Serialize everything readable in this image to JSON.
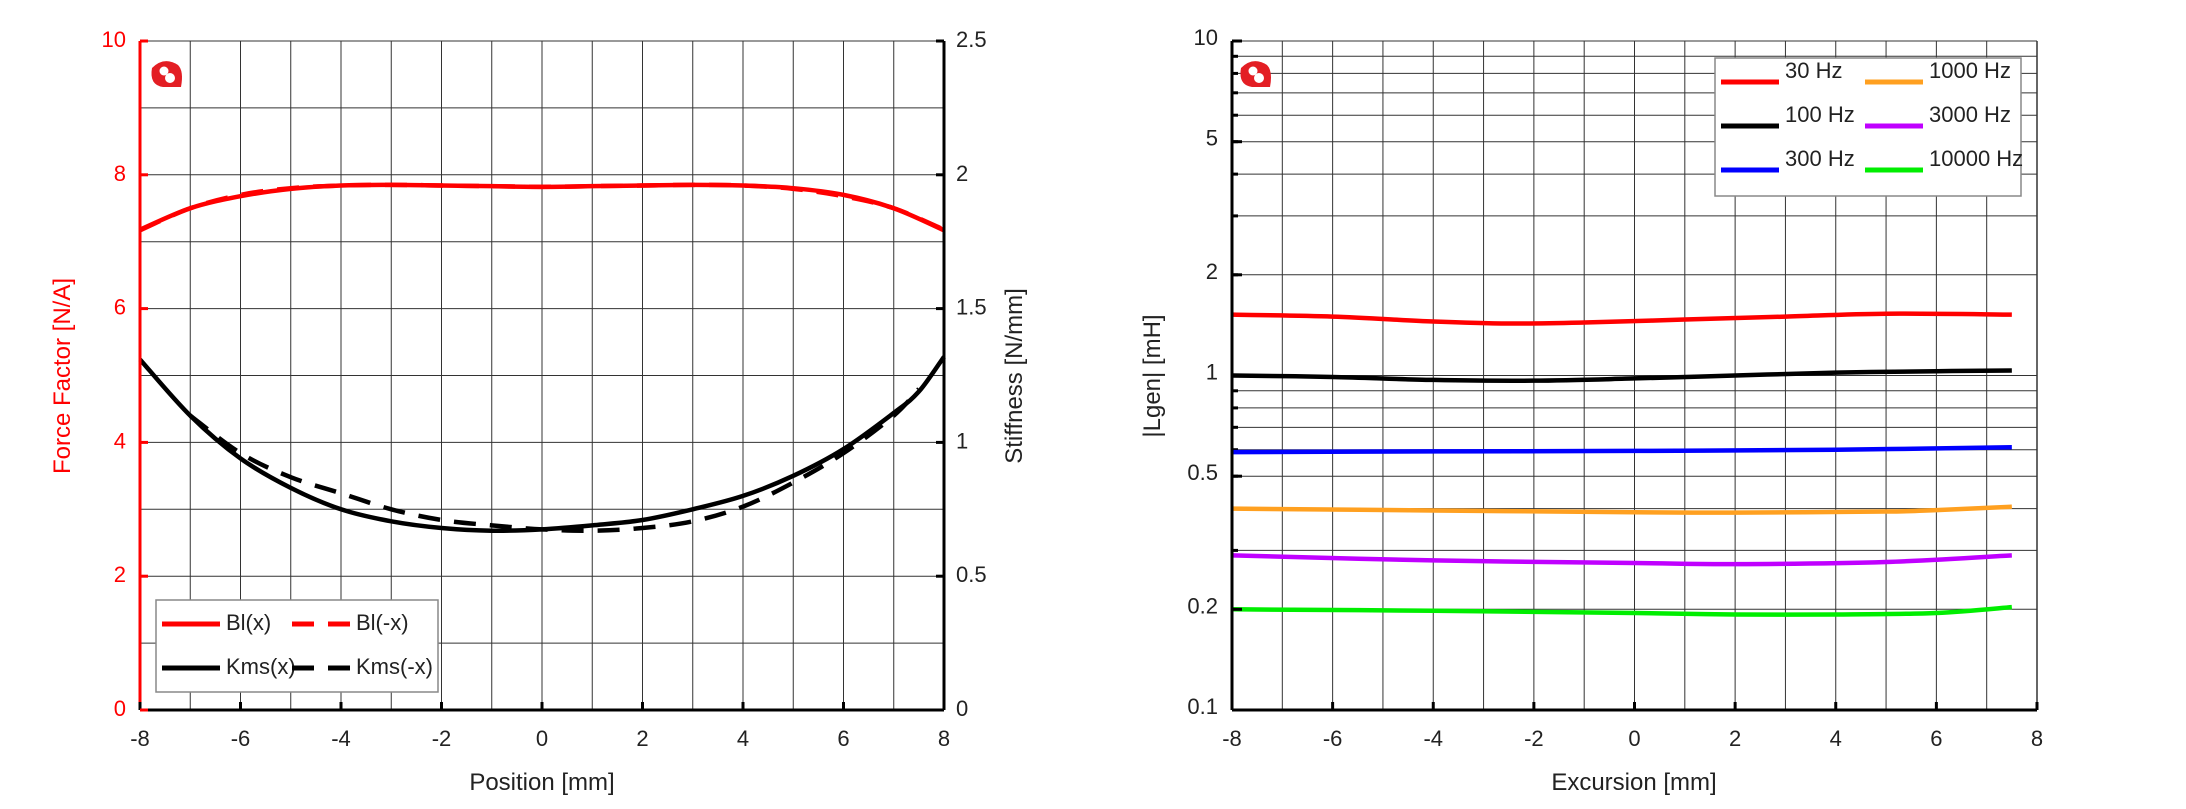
{
  "chart_data": [
    {
      "type": "line",
      "title": "",
      "xlabel": "Position [mm]",
      "ylabel": "Force Factor [N/A]",
      "y2label": "Stiffness [N/mm]",
      "xlim": [
        -8,
        8
      ],
      "ylim": [
        0,
        10
      ],
      "y2lim": [
        0,
        2.5
      ],
      "xticks": [
        "-8",
        "-6",
        "-4",
        "-2",
        "0",
        "2",
        "4",
        "6",
        "8"
      ],
      "yticks": [
        "0",
        "2",
        "4",
        "6",
        "8",
        "10"
      ],
      "y2ticks": [
        "0",
        "0.5",
        "1",
        "1.5",
        "2",
        "2.5"
      ],
      "grid": true,
      "legend": "bottom-left",
      "ylabel_color": "#ff0000",
      "series": [
        {
          "name": "Bl(x)",
          "axis": "left",
          "color": "#ff0000",
          "dash": false,
          "x": [
            -8,
            -7,
            -6,
            -5,
            -4,
            -3,
            -2,
            -1,
            0,
            1,
            2,
            3,
            4,
            5,
            6,
            7,
            8
          ],
          "y": [
            7.18,
            7.5,
            7.68,
            7.79,
            7.84,
            7.85,
            7.84,
            7.83,
            7.82,
            7.83,
            7.84,
            7.85,
            7.84,
            7.8,
            7.7,
            7.5,
            7.17
          ]
        },
        {
          "name": "Bl(-x)",
          "axis": "left",
          "color": "#ff0000",
          "dash": true,
          "x": [
            -8,
            -7,
            -6,
            -5,
            -4,
            -3,
            -2,
            -1,
            0,
            1,
            2,
            3,
            4,
            5,
            6,
            7,
            8
          ],
          "y": [
            7.17,
            7.5,
            7.7,
            7.8,
            7.84,
            7.85,
            7.84,
            7.83,
            7.82,
            7.83,
            7.84,
            7.85,
            7.84,
            7.79,
            7.68,
            7.5,
            7.18
          ]
        },
        {
          "name": "Kms(x)",
          "axis": "right",
          "color": "#000000",
          "dash": false,
          "x": [
            -8,
            -7,
            -6,
            -5,
            -4,
            -3,
            -2,
            -1,
            0,
            1,
            2,
            3,
            4,
            5,
            6,
            7,
            7.5,
            8
          ],
          "y": [
            1.31,
            1.1,
            0.94,
            0.83,
            0.75,
            0.705,
            0.68,
            0.67,
            0.675,
            0.69,
            0.71,
            0.75,
            0.8,
            0.875,
            0.975,
            1.11,
            1.19,
            1.32
          ]
        },
        {
          "name": "Kms(-x)",
          "axis": "right",
          "color": "#000000",
          "dash": true,
          "x": [
            -7,
            -6,
            -5,
            -4,
            -3,
            -2,
            -1,
            0,
            1,
            2,
            3,
            4,
            5,
            6,
            7,
            7.5
          ],
          "y": [
            1.1,
            0.96,
            0.87,
            0.81,
            0.75,
            0.71,
            0.69,
            0.675,
            0.67,
            0.68,
            0.705,
            0.76,
            0.85,
            0.96,
            1.1,
            1.2
          ]
        }
      ]
    },
    {
      "type": "line",
      "title": "",
      "xlabel": "Excursion [mm]",
      "ylabel": "|Lgen| [mH]",
      "xlim": [
        -8,
        8
      ],
      "ylim": [
        0.1,
        10
      ],
      "yscale": "log",
      "xticks": [
        "-8",
        "-6",
        "-4",
        "-2",
        "0",
        "2",
        "4",
        "6",
        "8"
      ],
      "yticks": [
        "0.1",
        "0.2",
        "0.5",
        "1",
        "2",
        "5",
        "10"
      ],
      "grid": true,
      "legend": "top-right",
      "series": [
        {
          "name": "30 Hz",
          "color": "#ff0000",
          "x": [
            -8,
            -6,
            -4,
            -2.5,
            -1,
            1,
            3,
            5,
            7.5
          ],
          "y": [
            1.52,
            1.5,
            1.45,
            1.43,
            1.44,
            1.47,
            1.5,
            1.53,
            1.52
          ]
        },
        {
          "name": "100 Hz",
          "color": "#000000",
          "x": [
            -8,
            -6,
            -4,
            -2,
            0,
            2,
            4,
            6,
            7.5
          ],
          "y": [
            1.0,
            0.99,
            0.97,
            0.965,
            0.98,
            1.0,
            1.02,
            1.03,
            1.035
          ]
        },
        {
          "name": "300 Hz",
          "color": "#0000ff",
          "x": [
            -8,
            -4,
            0,
            4,
            7.5
          ],
          "y": [
            0.59,
            0.593,
            0.595,
            0.6,
            0.61
          ]
        },
        {
          "name": "1000 Hz",
          "color": "#ffa020",
          "x": [
            -8,
            -4,
            0,
            2,
            5,
            6,
            7.5
          ],
          "y": [
            0.4,
            0.395,
            0.39,
            0.389,
            0.392,
            0.396,
            0.405
          ]
        },
        {
          "name": "3000 Hz",
          "color": "#c000ff",
          "x": [
            -8,
            -4,
            0,
            2,
            5,
            7.5
          ],
          "y": [
            0.29,
            0.28,
            0.275,
            0.273,
            0.277,
            0.29
          ]
        },
        {
          "name": "10000 Hz",
          "color": "#00ee00",
          "x": [
            -8,
            -4,
            0,
            2,
            4,
            6,
            7.5
          ],
          "y": [
            0.2,
            0.198,
            0.195,
            0.193,
            0.193,
            0.195,
            0.203
          ]
        }
      ]
    }
  ]
}
